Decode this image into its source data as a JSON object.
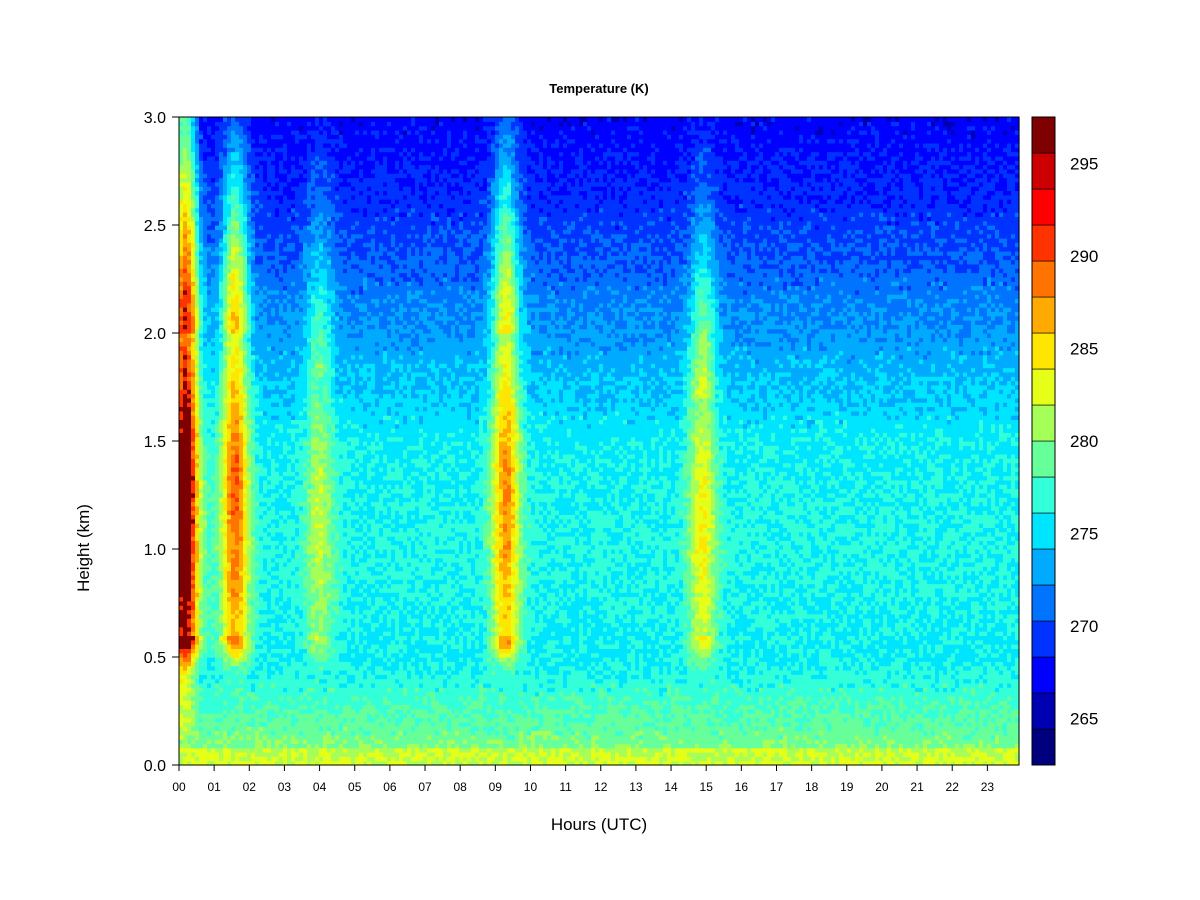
{
  "chart_data": {
    "type": "heatmap",
    "title": "Temperature (K)",
    "xlabel": "Hours (UTC)",
    "ylabel": "Height (km)",
    "x_ticks": [
      "00",
      "01",
      "02",
      "03",
      "04",
      "05",
      "06",
      "07",
      "08",
      "09",
      "10",
      "11",
      "12",
      "13",
      "14",
      "15",
      "16",
      "17",
      "18",
      "19",
      "20",
      "21",
      "22",
      "23"
    ],
    "xlim": [
      0,
      23.9
    ],
    "y_ticks": [
      "0.0",
      "0.5",
      "1.0",
      "1.5",
      "2.0",
      "2.5",
      "3.0"
    ],
    "ylim": [
      0.0,
      3.0
    ],
    "colorbar": {
      "ticks": [
        "265",
        "270",
        "275",
        "280",
        "285",
        "290",
        "295"
      ],
      "range": [
        262.5,
        297.5
      ],
      "levels": [
        262.5,
        265,
        267.5,
        270,
        272.5,
        275,
        277.5,
        280,
        282.5,
        285,
        287.5,
        290,
        292.5,
        295,
        297.5
      ],
      "colors": [
        "#00007f",
        "#0000b3",
        "#0000ff",
        "#0033ff",
        "#0073ff",
        "#00aaff",
        "#00e5ff",
        "#33ffd9",
        "#66ff99",
        "#a6ff59",
        "#e6ff19",
        "#ffe600",
        "#ffaa00",
        "#ff7300",
        "#ff3300",
        "#ff0000",
        "#cc0000",
        "#7f0000"
      ]
    },
    "warm_plumes": [
      {
        "hour": 0.25,
        "peak_K": 294,
        "core_height_km": [
          0.6,
          2.0
        ]
      },
      {
        "hour": 1.6,
        "peak_K": 295,
        "core_height_km": [
          0.6,
          2.0
        ]
      },
      {
        "hour": 4.0,
        "peak_K": 285,
        "core_height_km": [
          0.6,
          1.8
        ]
      },
      {
        "hour": 9.3,
        "peak_K": 293,
        "core_height_km": [
          0.6,
          2.0
        ]
      },
      {
        "hour": 14.9,
        "peak_K": 288,
        "core_height_km": [
          0.6,
          1.7
        ]
      }
    ],
    "background_profile_K": [
      {
        "height_km": 0.0,
        "temp_K": 283
      },
      {
        "height_km": 0.5,
        "temp_K": 277
      },
      {
        "height_km": 1.0,
        "temp_K": 278
      },
      {
        "height_km": 1.5,
        "temp_K": 277
      },
      {
        "height_km": 2.0,
        "temp_K": 273
      },
      {
        "height_km": 2.5,
        "temp_K": 269
      },
      {
        "height_km": 3.0,
        "temp_K": 266
      }
    ]
  }
}
